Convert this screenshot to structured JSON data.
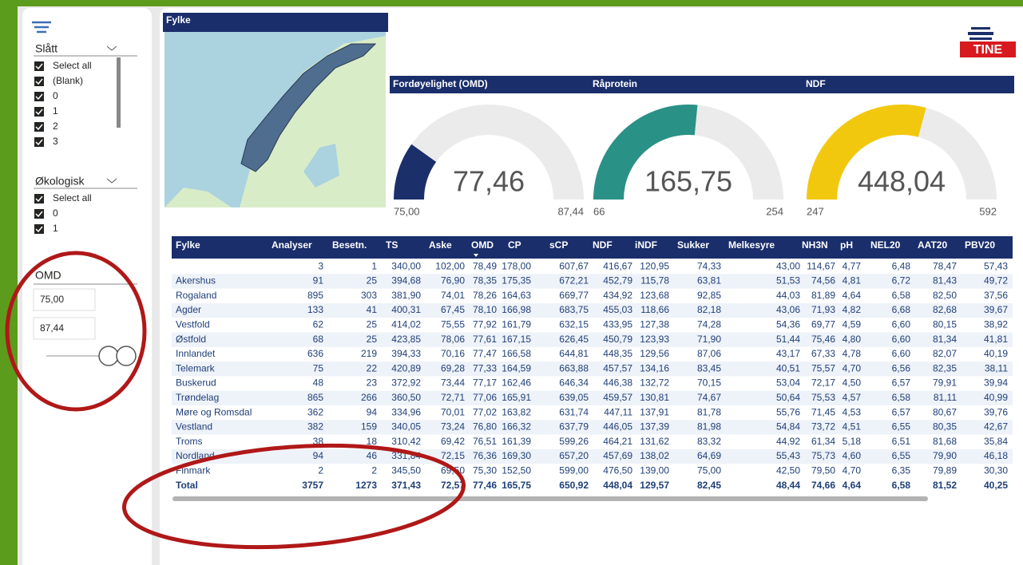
{
  "slicers": [
    {
      "title": "Slått",
      "items": [
        "Select all",
        "(Blank)",
        "0",
        "1",
        "2",
        "3"
      ]
    },
    {
      "title": "Økologisk",
      "items": [
        "Select all",
        "0",
        "1"
      ]
    }
  ],
  "range_slicer": {
    "title": "OMD",
    "min": "75,00",
    "max": "87,44"
  },
  "map": {
    "title": "Fylke"
  },
  "logo": "TINE",
  "gauges": [
    {
      "title": "Fordøyelighet (OMD)",
      "value": {
        "value": 77.46,
        "label": "77,46"
      },
      "min": {
        "value": 75,
        "label": "75,00"
      },
      "max": {
        "value": 87.44,
        "label": "87,44"
      },
      "color": "#1b2f6b"
    },
    {
      "title": "Råprotein",
      "value": {
        "value": 165.75,
        "label": "165,75"
      },
      "min": 66,
      "max": 254,
      "color": "#2a9187"
    },
    {
      "title": "NDF",
      "value": {
        "value": 448.04,
        "label": "448,04"
      },
      "min": 247,
      "max": 592,
      "color": "#f2c80f"
    }
  ],
  "table": {
    "columns": [
      "Fylke",
      "Analyser",
      "Besetn.",
      "TS",
      "Aske",
      "OMD",
      "CP",
      "sCP",
      "NDF",
      "iNDF",
      "Sukker",
      "Melkesyre",
      "NH3N",
      "pH",
      "NEL20",
      "AAT20",
      "PBV20"
    ],
    "rows": [
      [
        null,
        "3",
        "1",
        "340,00",
        "102,00",
        "78,49",
        "178,00",
        "607,67",
        "416,67",
        "120,95",
        "74,33",
        "43,00",
        "114,67",
        "4,77",
        "6,48",
        "78,47",
        "57,43"
      ],
      [
        "Akershus",
        "91",
        "25",
        "394,68",
        "76,90",
        "78,35",
        "175,35",
        "672,21",
        "452,79",
        "115,78",
        "63,81",
        "51,53",
        "74,56",
        "4,81",
        "6,72",
        "81,43",
        "49,72"
      ],
      [
        "Rogaland",
        "895",
        "303",
        "381,90",
        "74,01",
        "78,26",
        "164,63",
        "669,77",
        "434,92",
        "123,68",
        "92,85",
        "44,03",
        "81,89",
        "4,64",
        "6,58",
        "82,50",
        "37,56"
      ],
      [
        "Agder",
        "133",
        "41",
        "400,31",
        "67,45",
        "78,10",
        "166,98",
        "683,75",
        "455,03",
        "118,66",
        "82,18",
        "43,06",
        "71,93",
        "4,82",
        "6,68",
        "82,68",
        "39,67"
      ],
      [
        "Vestfold",
        "62",
        "25",
        "414,02",
        "75,55",
        "77,92",
        "161,79",
        "632,15",
        "433,95",
        "127,38",
        "74,28",
        "54,36",
        "69,77",
        "4,59",
        "6,60",
        "80,15",
        "38,92"
      ],
      [
        "Østfold",
        "68",
        "25",
        "423,85",
        "78,06",
        "77,61",
        "167,15",
        "626,45",
        "450,79",
        "123,93",
        "71,90",
        "51,44",
        "75,46",
        "4,80",
        "6,60",
        "81,34",
        "41,81"
      ],
      [
        "Innlandet",
        "636",
        "219",
        "394,33",
        "70,16",
        "77,47",
        "166,58",
        "644,81",
        "448,35",
        "129,56",
        "87,06",
        "43,17",
        "67,33",
        "4,78",
        "6,60",
        "82,07",
        "40,19"
      ],
      [
        "Telemark",
        "75",
        "22",
        "420,89",
        "69,28",
        "77,33",
        "164,59",
        "663,88",
        "457,57",
        "134,16",
        "83,45",
        "40,51",
        "75,57",
        "4,70",
        "6,56",
        "82,35",
        "38,11"
      ],
      [
        "Buskerud",
        "48",
        "23",
        "372,92",
        "73,44",
        "77,17",
        "162,46",
        "646,34",
        "446,38",
        "132,72",
        "70,15",
        "53,04",
        "72,17",
        "4,50",
        "6,57",
        "79,91",
        "39,94"
      ],
      [
        "Trøndelag",
        "865",
        "266",
        "360,50",
        "72,71",
        "77,06",
        "165,91",
        "639,05",
        "459,57",
        "130,81",
        "74,67",
        "50,64",
        "75,53",
        "4,57",
        "6,58",
        "81,11",
        "40,99"
      ],
      [
        "Møre og Romsdal",
        "362",
        "94",
        "334,96",
        "70,01",
        "77,02",
        "163,82",
        "631,74",
        "447,11",
        "137,91",
        "81,78",
        "55,76",
        "71,45",
        "4,53",
        "6,57",
        "80,67",
        "39,76"
      ],
      [
        "Vestland",
        "382",
        "159",
        "340,05",
        "73,24",
        "76,80",
        "166,32",
        "637,79",
        "446,05",
        "137,39",
        "81,98",
        "54,84",
        "73,72",
        "4,51",
        "6,55",
        "80,35",
        "42,67"
      ],
      [
        "Troms",
        "38",
        "18",
        "310,42",
        "69,42",
        "76,51",
        "161,39",
        "599,26",
        "464,21",
        "131,62",
        "83,32",
        "44,92",
        "61,34",
        "5,18",
        "6,51",
        "81,68",
        "35,84"
      ],
      [
        "Nordland",
        "94",
        "46",
        "331,84",
        "72,15",
        "76,36",
        "169,30",
        "657,20",
        "457,69",
        "138,02",
        "64,69",
        "55,43",
        "75,73",
        "4,60",
        "6,55",
        "79,90",
        "46,18"
      ],
      [
        "Finmark",
        "2",
        "2",
        "345,50",
        "69,50",
        "75,30",
        "152,50",
        "599,00",
        "476,50",
        "139,00",
        "75,00",
        "42,50",
        "79,50",
        "4,70",
        "6,35",
        "79,89",
        "30,30"
      ]
    ],
    "total": [
      "Total",
      "3757",
      "1273",
      "371,43",
      "72,57",
      "77,46",
      "165,75",
      "650,92",
      "448,04",
      "129,57",
      "82,45",
      "48,44",
      "74,66",
      "4,64",
      "6,58",
      "81,52",
      "40,25"
    ]
  }
}
